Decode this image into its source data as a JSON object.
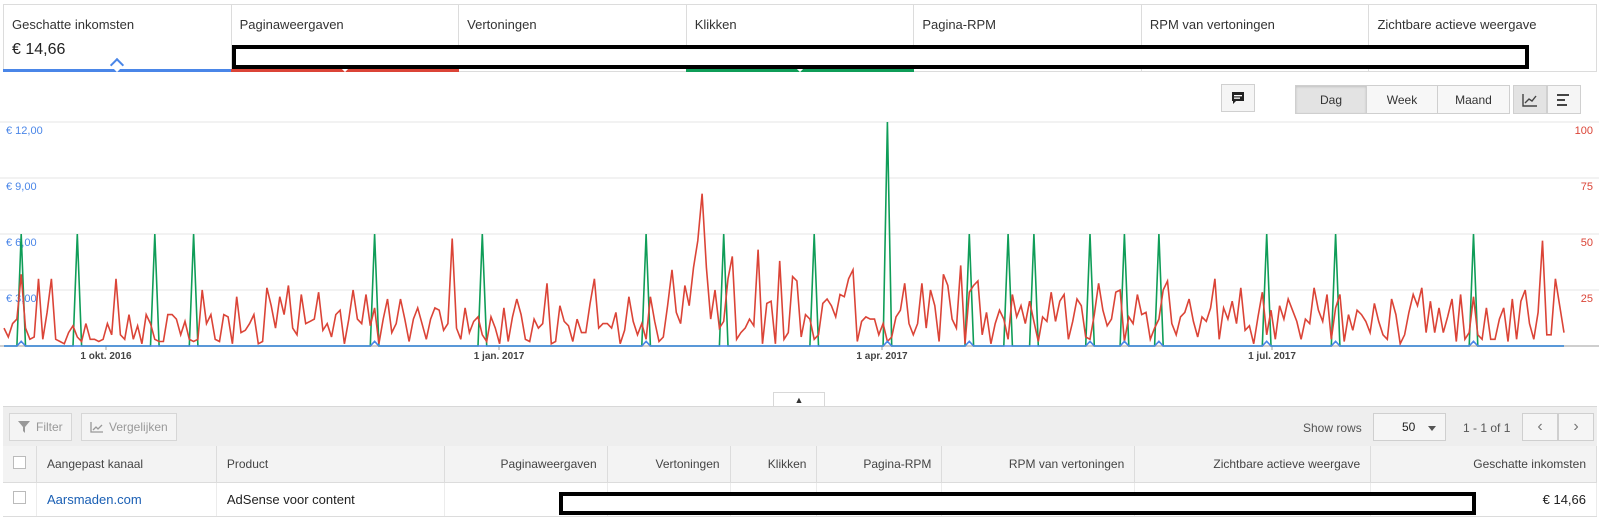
{
  "metrics": [
    {
      "label": "Geschatte inkomsten",
      "value": "€ 14,66",
      "color": "#4a86e8",
      "selected": true
    },
    {
      "label": "Paginaweergaven",
      "value": "",
      "color": "#db4437",
      "selected": true
    },
    {
      "label": "Vertoningen",
      "value": "",
      "color": "",
      "selected": false
    },
    {
      "label": "Klikken",
      "value": "",
      "color": "#0f9d58",
      "selected": true
    },
    {
      "label": "Pagina-RPM",
      "value": "",
      "color": "",
      "selected": false
    },
    {
      "label": "RPM van vertoningen",
      "value": "",
      "color": "",
      "selected": false
    },
    {
      "label": "Zichtbare actieve weergave",
      "value": "",
      "color": "",
      "selected": false
    }
  ],
  "toolbar": {
    "annotation_icon": "comment-icon",
    "periods": [
      "Dag",
      "Week",
      "Maand"
    ],
    "active_period": "Dag",
    "view_icons": [
      "line-chart-icon",
      "bar-chart-icon"
    ]
  },
  "chart_data": {
    "type": "line",
    "x_ticks": [
      "1 okt. 2016",
      "1 jan. 2017",
      "1 apr. 2017",
      "1 jul. 2017"
    ],
    "y_left_ticks": [
      "€ 12,00",
      "€ 9,00",
      "€ 6,00",
      "€ 3,00"
    ],
    "y_right_ticks": [
      "100",
      "75",
      "50",
      "25"
    ],
    "y_left_range": [
      0,
      12
    ],
    "y_right_range": [
      0,
      100
    ],
    "series": [
      {
        "name": "Paginaweergaven",
        "axis": "right",
        "color": "#db4437",
        "values": [
          8,
          4,
          10,
          12,
          32,
          8,
          3,
          4,
          30,
          3,
          15,
          30,
          3,
          2,
          1,
          6,
          9,
          4,
          2,
          10,
          3,
          3,
          2,
          3,
          10,
          5,
          30,
          5,
          3,
          14,
          3,
          9,
          1,
          14,
          10,
          3,
          2,
          2,
          14,
          14,
          12,
          5,
          11,
          3,
          2,
          3,
          25,
          10,
          14,
          3,
          2,
          14,
          13,
          1,
          22,
          6,
          7,
          10,
          14,
          1,
          2,
          26,
          18,
          8,
          22,
          14,
          27,
          8,
          5,
          23,
          10,
          11,
          12,
          24,
          7,
          10,
          4,
          14,
          16,
          1,
          12,
          25,
          12,
          10,
          23,
          9,
          17,
          1,
          12,
          21,
          6,
          10,
          21,
          12,
          2,
          12,
          17,
          10,
          3,
          12,
          17,
          16,
          7,
          10,
          48,
          8,
          3,
          17,
          6,
          11,
          13,
          5,
          2,
          13,
          8,
          1,
          17,
          2,
          13,
          21,
          14,
          3,
          2,
          12,
          8,
          10,
          28,
          1,
          2,
          18,
          11,
          9,
          2,
          12,
          6,
          6,
          19,
          30,
          8,
          10,
          10,
          8,
          15,
          1,
          7,
          22,
          11,
          5,
          10,
          3,
          22,
          11,
          2,
          4,
          18,
          34,
          15,
          10,
          27,
          18,
          35,
          47,
          68,
          35,
          12,
          25,
          8,
          11,
          30,
          40,
          3,
          6,
          8,
          12,
          9,
          43,
          1,
          19,
          20,
          1,
          38,
          3,
          6,
          31,
          29,
          4,
          14,
          12,
          3,
          5,
          19,
          21,
          18,
          13,
          23,
          22,
          30,
          34,
          2,
          11,
          13,
          12,
          12,
          5,
          10,
          2,
          4,
          13,
          16,
          28,
          10,
          5,
          10,
          28,
          8,
          25,
          18,
          2,
          32,
          27,
          12,
          8,
          36,
          1,
          24,
          27,
          29,
          5,
          15,
          1,
          10,
          16,
          12,
          3,
          23,
          13,
          18,
          10,
          20,
          11,
          2,
          13,
          11,
          24,
          11,
          20,
          23,
          3,
          11,
          21,
          18,
          4,
          3,
          14,
          28,
          16,
          9,
          12,
          24,
          25,
          2,
          13,
          10,
          23,
          14,
          15,
          3,
          8,
          12,
          25,
          29,
          10,
          5,
          13,
          15,
          21,
          11,
          4,
          13,
          11,
          17,
          30,
          3,
          17,
          12,
          20,
          10,
          26,
          7,
          9,
          1,
          13,
          24,
          5,
          16,
          3,
          18,
          12,
          21,
          16,
          11,
          3,
          12,
          10,
          26,
          16,
          11,
          23,
          3,
          17,
          23,
          2,
          14,
          7,
          16,
          14,
          11,
          6,
          19,
          11,
          5,
          3,
          21,
          14,
          1,
          5,
          15,
          23,
          18,
          26,
          6,
          20,
          6,
          17,
          6,
          13,
          21,
          2,
          23,
          3,
          6,
          22,
          5,
          3,
          17,
          3,
          3,
          12,
          17,
          2,
          21,
          3,
          20,
          25,
          10,
          3,
          15,
          47,
          5,
          5,
          30,
          18,
          6
        ]
      },
      {
        "name": "Klikken",
        "axis": "left",
        "color": "#0f9d58",
        "peaks": [
          4,
          17,
          35,
          44,
          86,
          111,
          149,
          167,
          188,
          205,
          224,
          233,
          239,
          252,
          260,
          268,
          293,
          309,
          341,
          371,
          377,
          396
        ]
      },
      {
        "name": "Geschatte inkomsten",
        "axis": "left",
        "color": "#4a86e8",
        "peaks": [
          4,
          86,
          149,
          205,
          224,
          252,
          260,
          268,
          293,
          309,
          341,
          377
        ]
      }
    ]
  },
  "table_toolbar": {
    "filter": "Filter",
    "compare": "Vergelijken",
    "show_rows_label": "Show rows",
    "rows_value": "50",
    "pager_text": "1 - 1 of 1"
  },
  "table": {
    "headers": [
      "Aangepast kanaal",
      "Product",
      "Paginaweergaven",
      "Vertoningen",
      "Klikken",
      "Pagina-RPM",
      "RPM van vertoningen",
      "Zichtbare actieve weergave",
      "Geschatte inkomsten"
    ],
    "rows": [
      {
        "channel": "Aarsmaden.com",
        "product": "AdSense voor content",
        "earnings": "€ 14,66"
      }
    ]
  }
}
